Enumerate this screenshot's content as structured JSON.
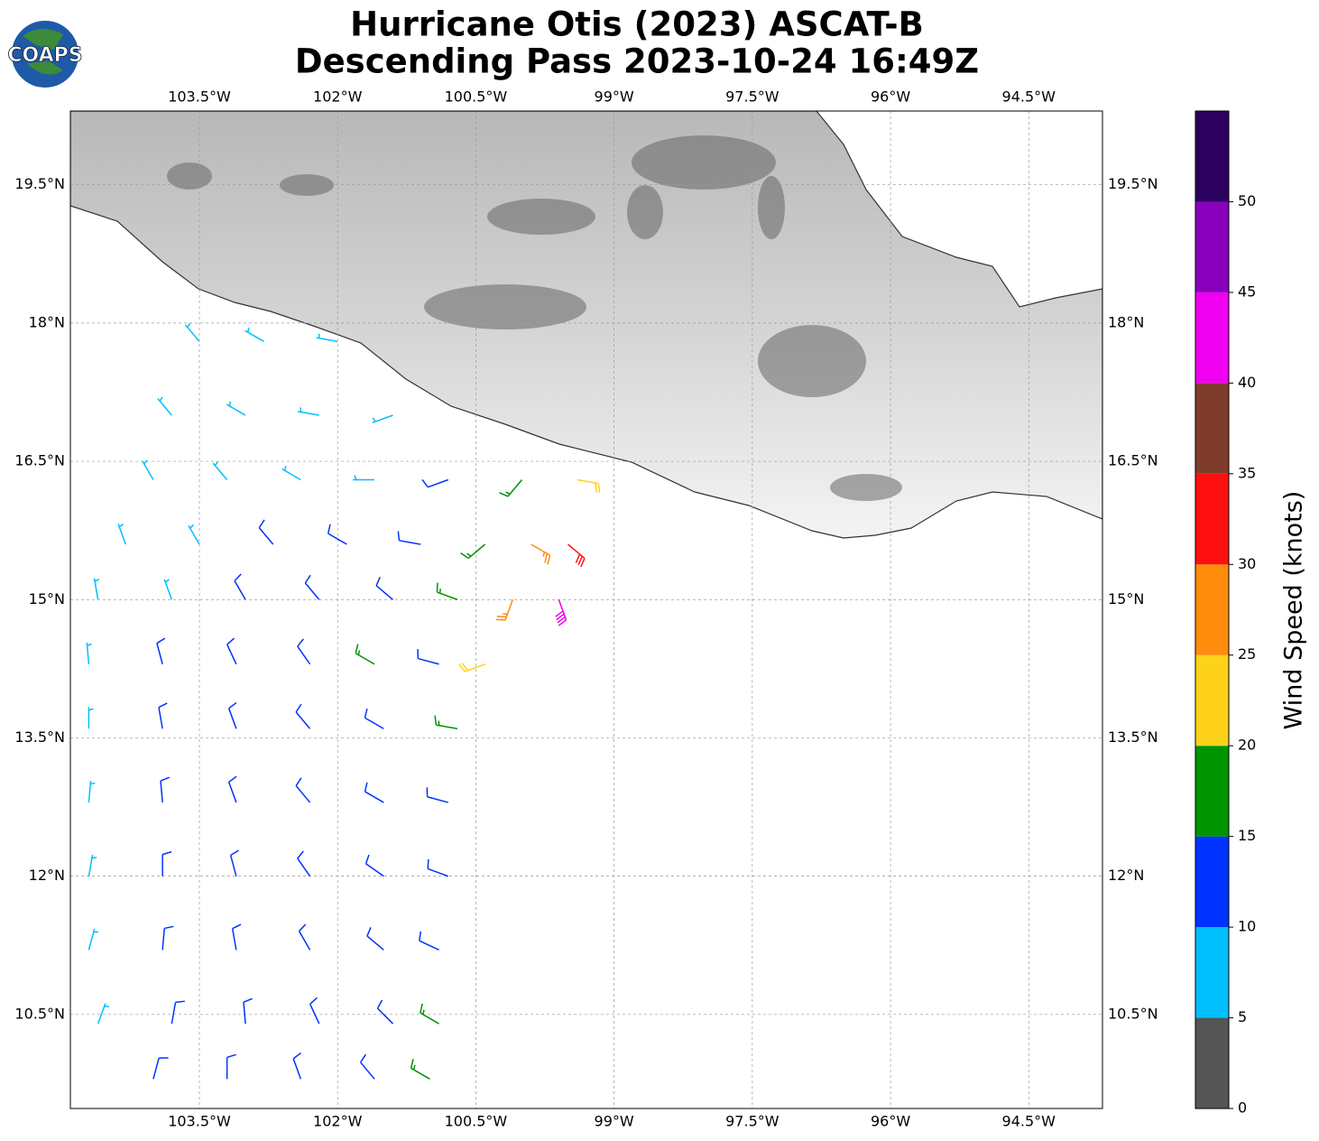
{
  "chart_data": {
    "type": "barbs",
    "title": [
      "Hurricane Otis (2023) ASCAT-B",
      "Descending Pass 2023-10-24 16:49Z"
    ],
    "logo": "COAPS",
    "xlim": [
      -104.9,
      -93.7
    ],
    "ylim": [
      9.48,
      20.3
    ],
    "xticks": [
      {
        "value": -103.5,
        "label": "103.5°W"
      },
      {
        "value": -102,
        "label": "102°W"
      },
      {
        "value": -100.5,
        "label": "100.5°W"
      },
      {
        "value": -99,
        "label": "99°W"
      },
      {
        "value": -97.5,
        "label": "97.5°W"
      },
      {
        "value": -96,
        "label": "96°W"
      },
      {
        "value": -94.5,
        "label": "94.5°W"
      }
    ],
    "yticks": [
      {
        "value": 19.5,
        "label": "19.5°N"
      },
      {
        "value": 18,
        "label": "18°N"
      },
      {
        "value": 16.5,
        "label": "16.5°N"
      },
      {
        "value": 15,
        "label": "15°N"
      },
      {
        "value": 13.5,
        "label": "13.5°N"
      },
      {
        "value": 12,
        "label": "12°N"
      },
      {
        "value": 10.5,
        "label": "10.5°N"
      }
    ],
    "grid": true,
    "colorbar": {
      "label": "Wind Speed (knots)",
      "lim": [
        0,
        55
      ],
      "levels": [
        0,
        5,
        10,
        15,
        20,
        25,
        30,
        35,
        40,
        45,
        50,
        55
      ],
      "colors": [
        "#555555",
        "#00bfff",
        "#0033ff",
        "#009400",
        "#ffd21a",
        "#ff8c0d",
        "#ff1010",
        "#7f3c2a",
        "#f000f0",
        "#8800bb",
        "#2b005e"
      ],
      "ticks": [
        0,
        5,
        10,
        15,
        20,
        25,
        30,
        35,
        40,
        45,
        50
      ]
    },
    "barbs": {
      "lon": [
        -103.5,
        -102.8,
        -102.0,
        -103.8,
        -103.0,
        -102.2,
        -101.4,
        -104.0,
        -103.2,
        -102.4,
        -101.6,
        -100.8,
        -100.0,
        -99.4,
        -104.3,
        -103.5,
        -102.7,
        -101.9,
        -101.1,
        -100.4,
        -99.9,
        -99.5,
        -104.6,
        -103.8,
        -103.0,
        -102.2,
        -101.4,
        -100.7,
        -100.1,
        -99.6,
        -104.7,
        -103.9,
        -103.1,
        -102.3,
        -101.6,
        -100.9,
        -100.4,
        -104.7,
        -103.9,
        -103.1,
        -102.3,
        -101.5,
        -100.7,
        -104.7,
        -103.9,
        -103.1,
        -102.3,
        -101.5,
        -100.8,
        -104.7,
        -103.9,
        -103.1,
        -102.3,
        -101.5,
        -100.8,
        -104.7,
        -103.9,
        -103.1,
        -102.3,
        -101.5,
        -100.9,
        -104.6,
        -103.8,
        -103.0,
        -102.2,
        -101.4,
        -100.9,
        -104.0,
        -103.2,
        -102.4,
        -101.6,
        -101.0
      ],
      "lat": [
        17.8,
        17.8,
        17.8,
        17.0,
        17.0,
        17.0,
        17.0,
        16.3,
        16.3,
        16.3,
        16.3,
        16.3,
        16.3,
        16.3,
        15.6,
        15.6,
        15.6,
        15.6,
        15.6,
        15.6,
        15.6,
        15.6,
        15.0,
        15.0,
        15.0,
        15.0,
        15.0,
        15.0,
        15.0,
        15.0,
        14.3,
        14.3,
        14.3,
        14.3,
        14.3,
        14.3,
        14.3,
        13.6,
        13.6,
        13.6,
        13.6,
        13.6,
        13.6,
        12.8,
        12.8,
        12.8,
        12.8,
        12.8,
        12.8,
        12.0,
        12.0,
        12.0,
        12.0,
        12.0,
        12.0,
        11.2,
        11.2,
        11.2,
        11.2,
        11.2,
        11.2,
        10.4,
        10.4,
        10.4,
        10.4,
        10.4,
        10.4,
        9.8,
        9.8,
        9.8,
        9.8,
        9.8
      ],
      "speed": [
        8,
        8,
        7,
        8,
        8,
        9,
        9,
        7,
        8,
        9,
        8,
        12,
        18,
        22,
        7,
        8,
        10,
        12,
        13,
        18,
        27,
        32,
        7,
        9,
        11,
        12,
        13,
        16,
        28,
        42,
        7,
        11,
        12,
        12,
        17,
        14,
        22,
        8,
        12,
        12,
        13,
        13,
        16,
        8,
        12,
        13,
        13,
        12,
        13,
        8,
        11,
        13,
        13,
        10,
        12,
        7,
        10,
        12,
        13,
        12,
        12,
        7,
        10,
        12,
        12,
        13,
        17,
        10,
        11,
        12,
        12,
        18
      ],
      "direction": [
        320,
        300,
        280,
        320,
        300,
        280,
        250,
        330,
        320,
        300,
        270,
        250,
        220,
        100,
        340,
        330,
        320,
        300,
        280,
        230,
        120,
        130,
        350,
        340,
        330,
        320,
        310,
        290,
        200,
        160,
        355,
        345,
        335,
        325,
        300,
        285,
        250,
        0,
        350,
        340,
        320,
        300,
        280,
        5,
        355,
        340,
        320,
        300,
        285,
        10,
        0,
        345,
        325,
        305,
        290,
        15,
        5,
        350,
        330,
        310,
        295,
        20,
        10,
        355,
        335,
        315,
        300,
        15,
        0,
        340,
        320,
        300
      ]
    }
  }
}
